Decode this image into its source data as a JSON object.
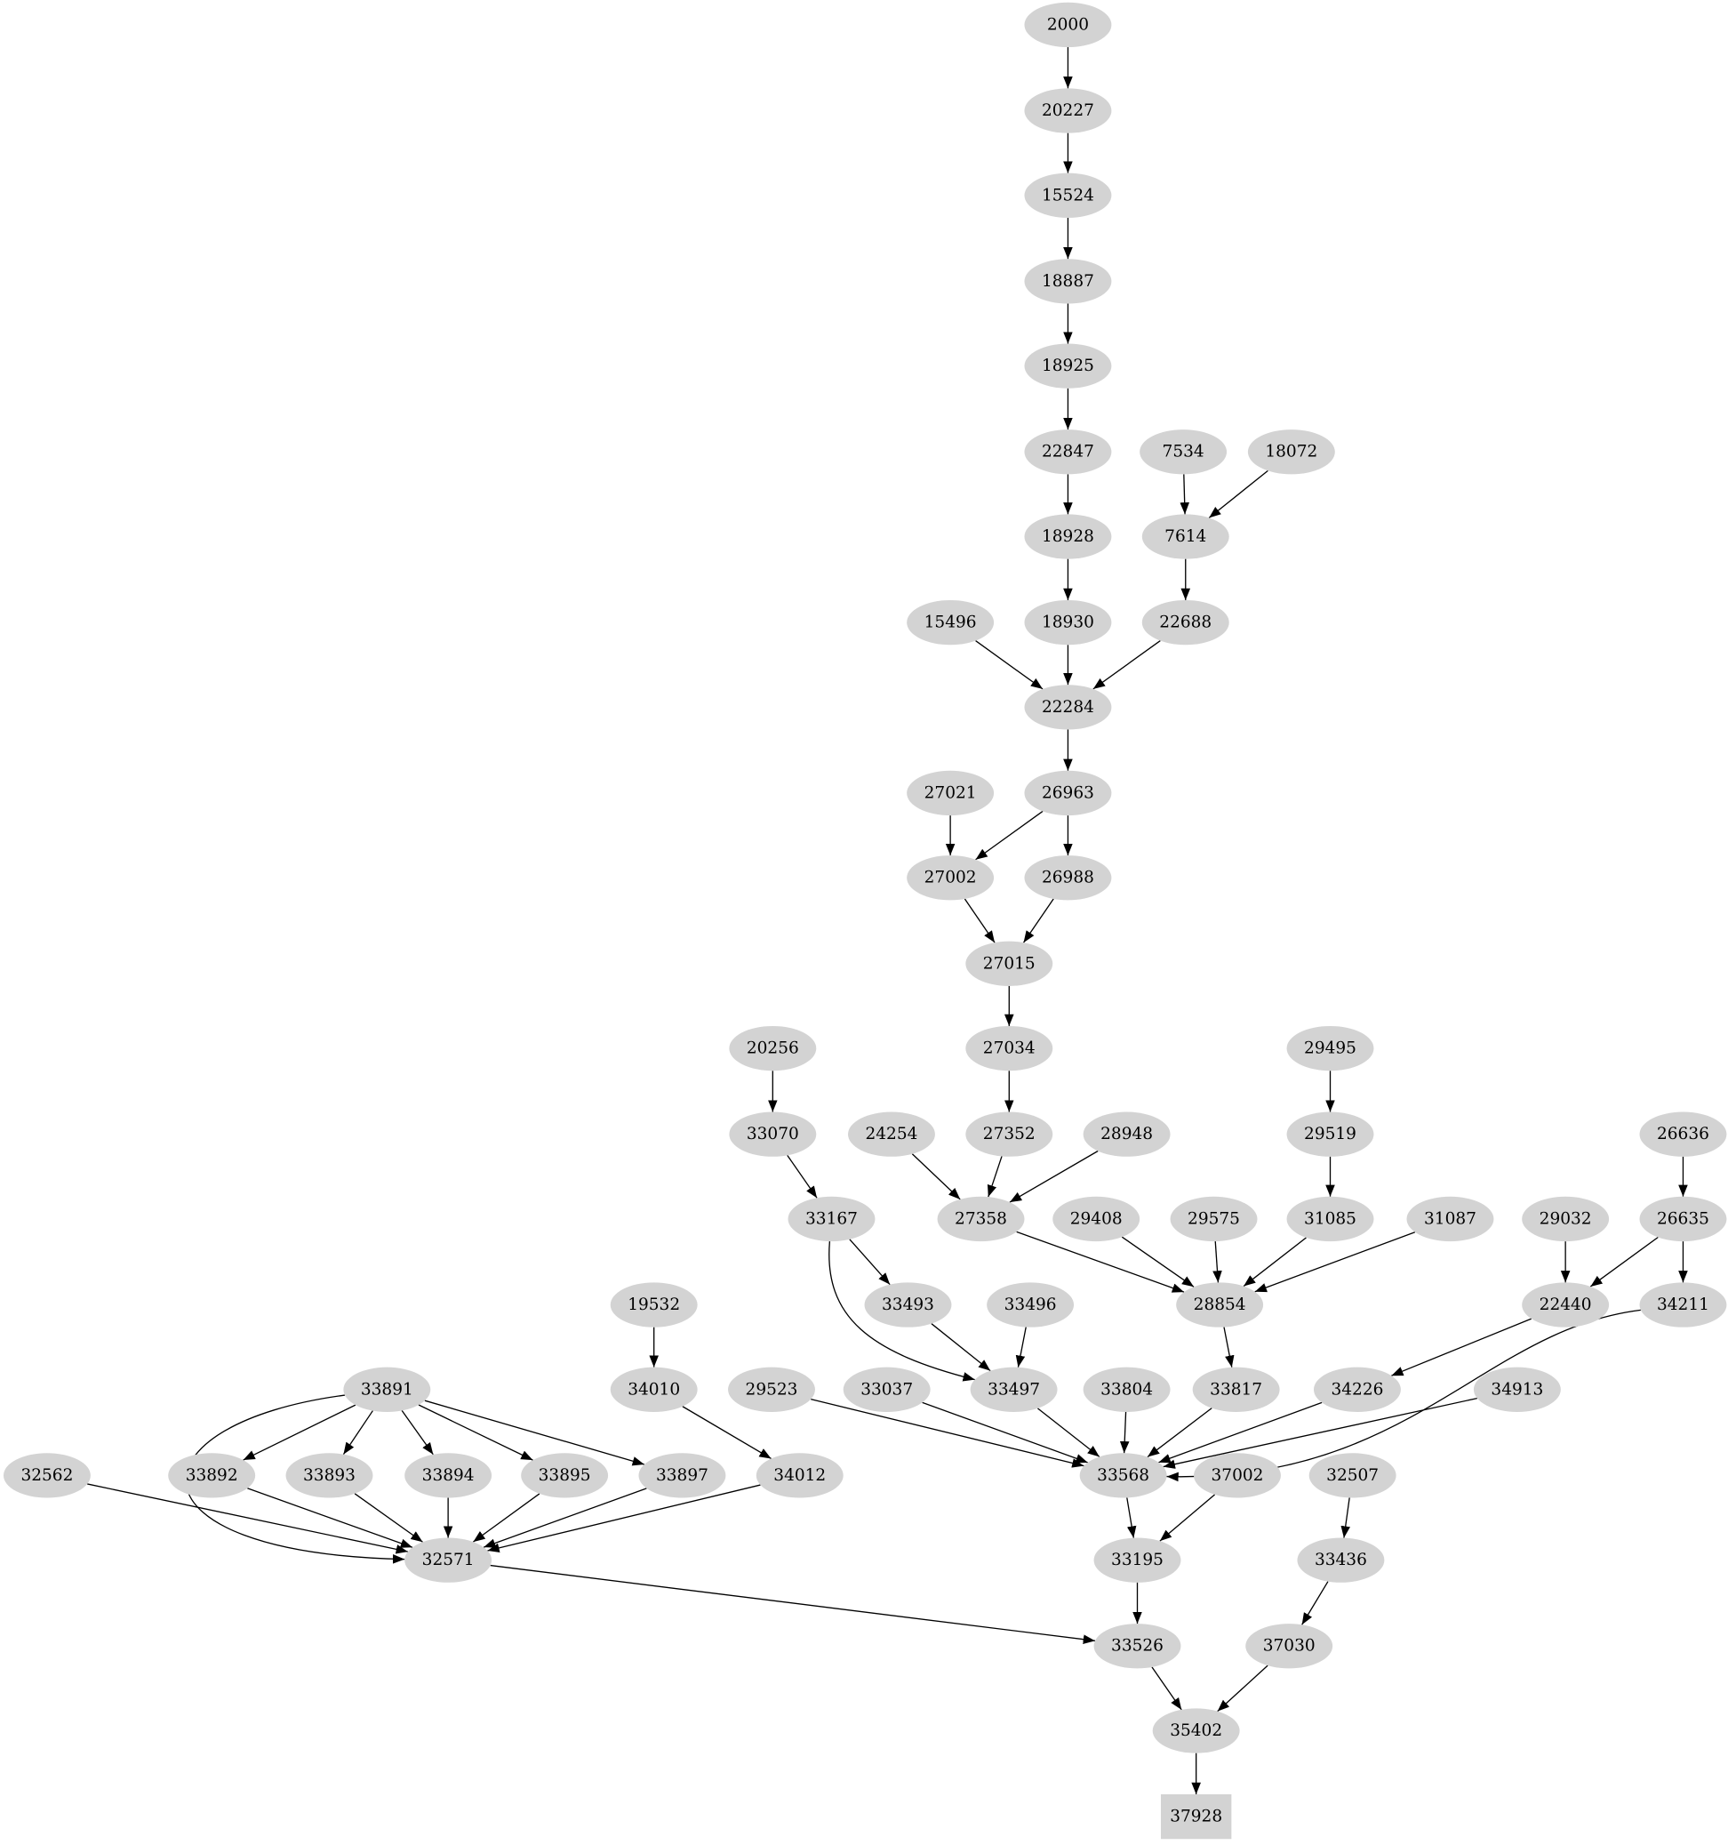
{
  "node_fill": "#d3d3d3",
  "edge_color": "#000000",
  "nodes": [
    {
      "id": "2000",
      "shape": "ellipse"
    },
    {
      "id": "20227",
      "shape": "ellipse"
    },
    {
      "id": "15524",
      "shape": "ellipse"
    },
    {
      "id": "18887",
      "shape": "ellipse"
    },
    {
      "id": "18925",
      "shape": "ellipse"
    },
    {
      "id": "22847",
      "shape": "ellipse"
    },
    {
      "id": "7534",
      "shape": "ellipse"
    },
    {
      "id": "18072",
      "shape": "ellipse"
    },
    {
      "id": "18928",
      "shape": "ellipse"
    },
    {
      "id": "7614",
      "shape": "ellipse"
    },
    {
      "id": "15496",
      "shape": "ellipse"
    },
    {
      "id": "18930",
      "shape": "ellipse"
    },
    {
      "id": "22688",
      "shape": "ellipse"
    },
    {
      "id": "22284",
      "shape": "ellipse"
    },
    {
      "id": "27021",
      "shape": "ellipse"
    },
    {
      "id": "26963",
      "shape": "ellipse"
    },
    {
      "id": "27002",
      "shape": "ellipse"
    },
    {
      "id": "26988",
      "shape": "ellipse"
    },
    {
      "id": "27015",
      "shape": "ellipse"
    },
    {
      "id": "20256",
      "shape": "ellipse"
    },
    {
      "id": "27034",
      "shape": "ellipse"
    },
    {
      "id": "29495",
      "shape": "ellipse"
    },
    {
      "id": "33070",
      "shape": "ellipse"
    },
    {
      "id": "24254",
      "shape": "ellipse"
    },
    {
      "id": "27352",
      "shape": "ellipse"
    },
    {
      "id": "28948",
      "shape": "ellipse"
    },
    {
      "id": "29519",
      "shape": "ellipse"
    },
    {
      "id": "26636",
      "shape": "ellipse"
    },
    {
      "id": "33167",
      "shape": "ellipse"
    },
    {
      "id": "27358",
      "shape": "ellipse"
    },
    {
      "id": "29408",
      "shape": "ellipse"
    },
    {
      "id": "29575",
      "shape": "ellipse"
    },
    {
      "id": "31085",
      "shape": "ellipse"
    },
    {
      "id": "31087",
      "shape": "ellipse"
    },
    {
      "id": "29032",
      "shape": "ellipse"
    },
    {
      "id": "26635",
      "shape": "ellipse"
    },
    {
      "id": "19532",
      "shape": "ellipse"
    },
    {
      "id": "33493",
      "shape": "ellipse"
    },
    {
      "id": "33496",
      "shape": "ellipse"
    },
    {
      "id": "28854",
      "shape": "ellipse"
    },
    {
      "id": "22440",
      "shape": "ellipse"
    },
    {
      "id": "34211",
      "shape": "ellipse"
    },
    {
      "id": "33891",
      "shape": "ellipse"
    },
    {
      "id": "34010",
      "shape": "ellipse"
    },
    {
      "id": "29523",
      "shape": "ellipse"
    },
    {
      "id": "33037",
      "shape": "ellipse"
    },
    {
      "id": "33497",
      "shape": "ellipse"
    },
    {
      "id": "33804",
      "shape": "ellipse"
    },
    {
      "id": "33817",
      "shape": "ellipse"
    },
    {
      "id": "34226",
      "shape": "ellipse"
    },
    {
      "id": "34913",
      "shape": "ellipse"
    },
    {
      "id": "32562",
      "shape": "ellipse"
    },
    {
      "id": "33892",
      "shape": "ellipse"
    },
    {
      "id": "33893",
      "shape": "ellipse"
    },
    {
      "id": "33894",
      "shape": "ellipse"
    },
    {
      "id": "33895",
      "shape": "ellipse"
    },
    {
      "id": "33897",
      "shape": "ellipse"
    },
    {
      "id": "34012",
      "shape": "ellipse"
    },
    {
      "id": "33568",
      "shape": "ellipse"
    },
    {
      "id": "37002",
      "shape": "ellipse"
    },
    {
      "id": "32507",
      "shape": "ellipse"
    },
    {
      "id": "32571",
      "shape": "ellipse"
    },
    {
      "id": "33195",
      "shape": "ellipse"
    },
    {
      "id": "33436",
      "shape": "ellipse"
    },
    {
      "id": "33526",
      "shape": "ellipse"
    },
    {
      "id": "37030",
      "shape": "ellipse"
    },
    {
      "id": "35402",
      "shape": "ellipse"
    },
    {
      "id": "37928",
      "shape": "box"
    }
  ],
  "edges": [
    [
      "2000",
      "20227"
    ],
    [
      "20227",
      "15524"
    ],
    [
      "15524",
      "18887"
    ],
    [
      "18887",
      "18925"
    ],
    [
      "18925",
      "22847"
    ],
    [
      "22847",
      "18928"
    ],
    [
      "18928",
      "18930"
    ],
    [
      "7534",
      "7614"
    ],
    [
      "18072",
      "7614"
    ],
    [
      "7614",
      "22688"
    ],
    [
      "15496",
      "22284"
    ],
    [
      "18930",
      "22284"
    ],
    [
      "22688",
      "22284"
    ],
    [
      "22284",
      "26963"
    ],
    [
      "27021",
      "27002"
    ],
    [
      "26963",
      "27002"
    ],
    [
      "26963",
      "26988"
    ],
    [
      "27002",
      "27015"
    ],
    [
      "26988",
      "27015"
    ],
    [
      "27015",
      "27034"
    ],
    [
      "27034",
      "27352"
    ],
    [
      "20256",
      "33070"
    ],
    [
      "33070",
      "33167"
    ],
    [
      "24254",
      "27358"
    ],
    [
      "27352",
      "27358"
    ],
    [
      "28948",
      "27358"
    ],
    [
      "29495",
      "29519"
    ],
    [
      "29519",
      "31085"
    ],
    [
      "26636",
      "26635"
    ],
    [
      "27358",
      "28854"
    ],
    [
      "29408",
      "28854"
    ],
    [
      "29575",
      "28854"
    ],
    [
      "31085",
      "28854"
    ],
    [
      "31087",
      "28854"
    ],
    [
      "29032",
      "22440"
    ],
    [
      "26635",
      "22440"
    ],
    [
      "26635",
      "34211"
    ],
    [
      "33167",
      "33493"
    ],
    [
      "33167",
      "33497"
    ],
    [
      "33493",
      "33497"
    ],
    [
      "33496",
      "33497"
    ],
    [
      "19532",
      "34010"
    ],
    [
      "28854",
      "33817"
    ],
    [
      "22440",
      "34226"
    ],
    [
      "34010",
      "34012"
    ],
    [
      "33891",
      "33892"
    ],
    [
      "33891",
      "33893"
    ],
    [
      "33891",
      "33894"
    ],
    [
      "33891",
      "33895"
    ],
    [
      "33891",
      "33897"
    ],
    [
      "33891",
      "32571"
    ],
    [
      "29523",
      "33568"
    ],
    [
      "33037",
      "33568"
    ],
    [
      "33497",
      "33568"
    ],
    [
      "33804",
      "33568"
    ],
    [
      "33817",
      "33568"
    ],
    [
      "34226",
      "33568"
    ],
    [
      "34211",
      "33568"
    ],
    [
      "34913",
      "33568"
    ],
    [
      "32562",
      "32571"
    ],
    [
      "33892",
      "32571"
    ],
    [
      "33893",
      "32571"
    ],
    [
      "33894",
      "32571"
    ],
    [
      "33895",
      "32571"
    ],
    [
      "33897",
      "32571"
    ],
    [
      "34012",
      "32571"
    ],
    [
      "33568",
      "33195"
    ],
    [
      "37002",
      "33195"
    ],
    [
      "32507",
      "33436"
    ],
    [
      "32571",
      "33526"
    ],
    [
      "33195",
      "33526"
    ],
    [
      "33436",
      "37030"
    ],
    [
      "33526",
      "35402"
    ],
    [
      "37030",
      "35402"
    ],
    [
      "35402",
      "37928"
    ]
  ]
}
